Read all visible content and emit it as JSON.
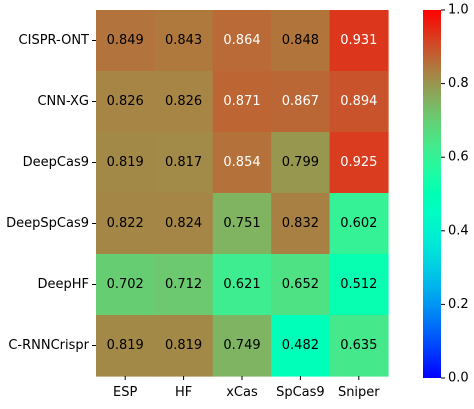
{
  "chart_data": {
    "type": "heatmap",
    "rows": [
      "CISPR-ONT",
      "CNN-XG",
      "DeepCas9",
      "DeepSpCas9",
      "DeepHF",
      "C-RNNCrispr"
    ],
    "columns": [
      "ESP",
      "HF",
      "xCas",
      "SpCas9",
      "Sniper"
    ],
    "values": [
      [
        0.849,
        0.843,
        0.864,
        0.848,
        0.931
      ],
      [
        0.826,
        0.826,
        0.871,
        0.867,
        0.894
      ],
      [
        0.819,
        0.817,
        0.854,
        0.799,
        0.925
      ],
      [
        0.822,
        0.824,
        0.751,
        0.832,
        0.602
      ],
      [
        0.702,
        0.712,
        0.621,
        0.652,
        0.512
      ],
      [
        0.819,
        0.819,
        0.749,
        0.482,
        0.635
      ]
    ],
    "colormap": "rainbow",
    "value_range": [
      0.0,
      1.0
    ],
    "colorbar_ticks": [
      "0.0",
      "0.2",
      "0.4",
      "0.6",
      "0.8",
      "1.0"
    ],
    "title": "",
    "xlabel": "",
    "ylabel": ""
  }
}
